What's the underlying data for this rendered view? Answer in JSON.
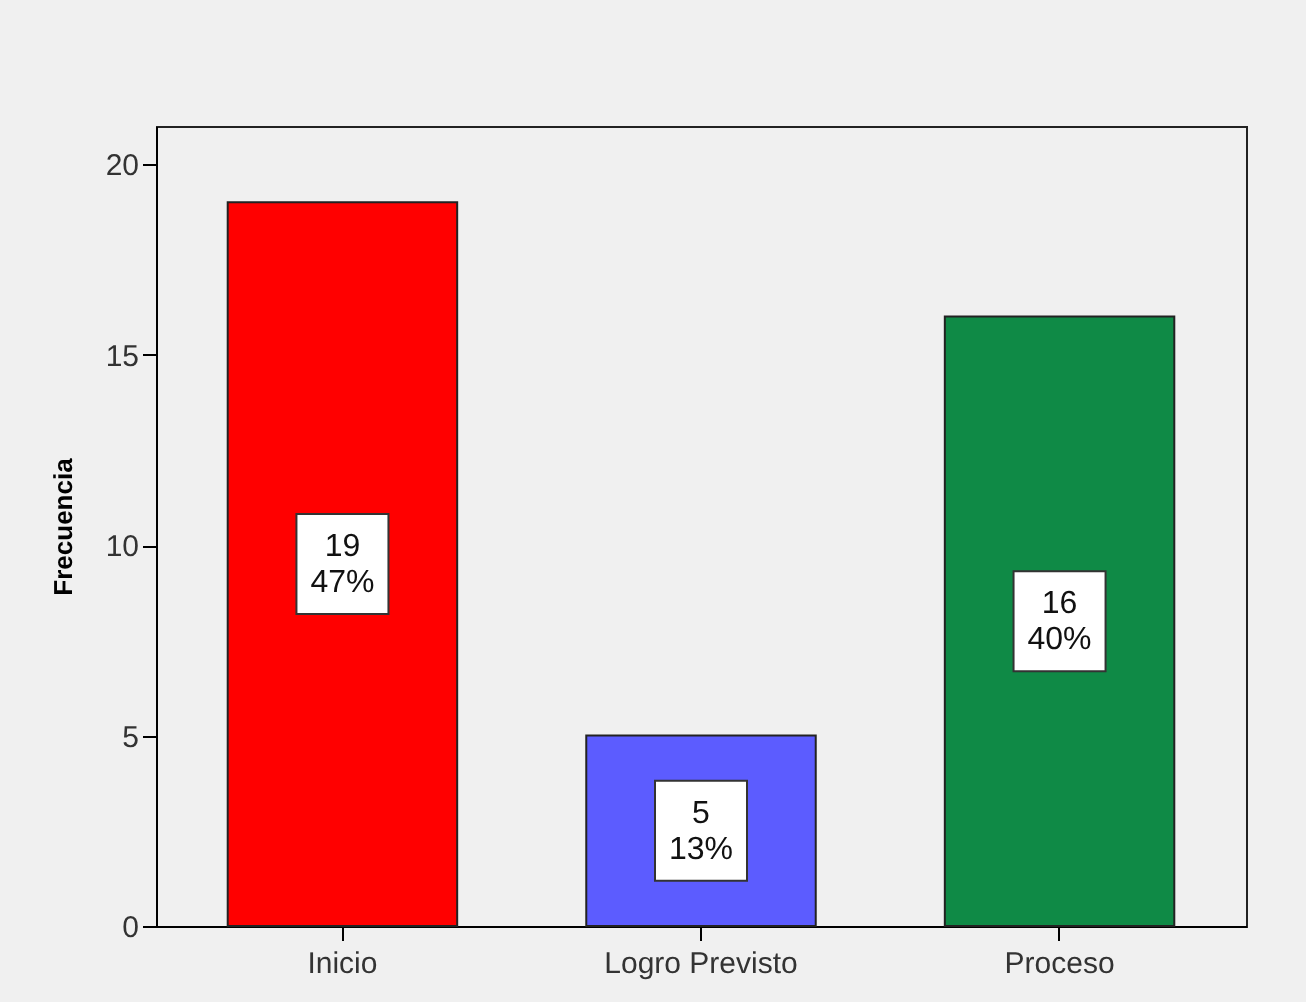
{
  "chart_data": {
    "type": "bar",
    "categories": [
      "Inicio",
      "Logro Previsto",
      "Proceso"
    ],
    "values": [
      19,
      5,
      16
    ],
    "colors": [
      "#ff0000",
      "#5c5cff",
      "#0f8a46"
    ],
    "ylabel": "Frecuencia",
    "ylim": [
      0,
      21
    ],
    "yticks": [
      0,
      5,
      10,
      15,
      20
    ],
    "value_labels": [
      "19\n47%",
      "5\n13%",
      "16\n40%"
    ]
  }
}
